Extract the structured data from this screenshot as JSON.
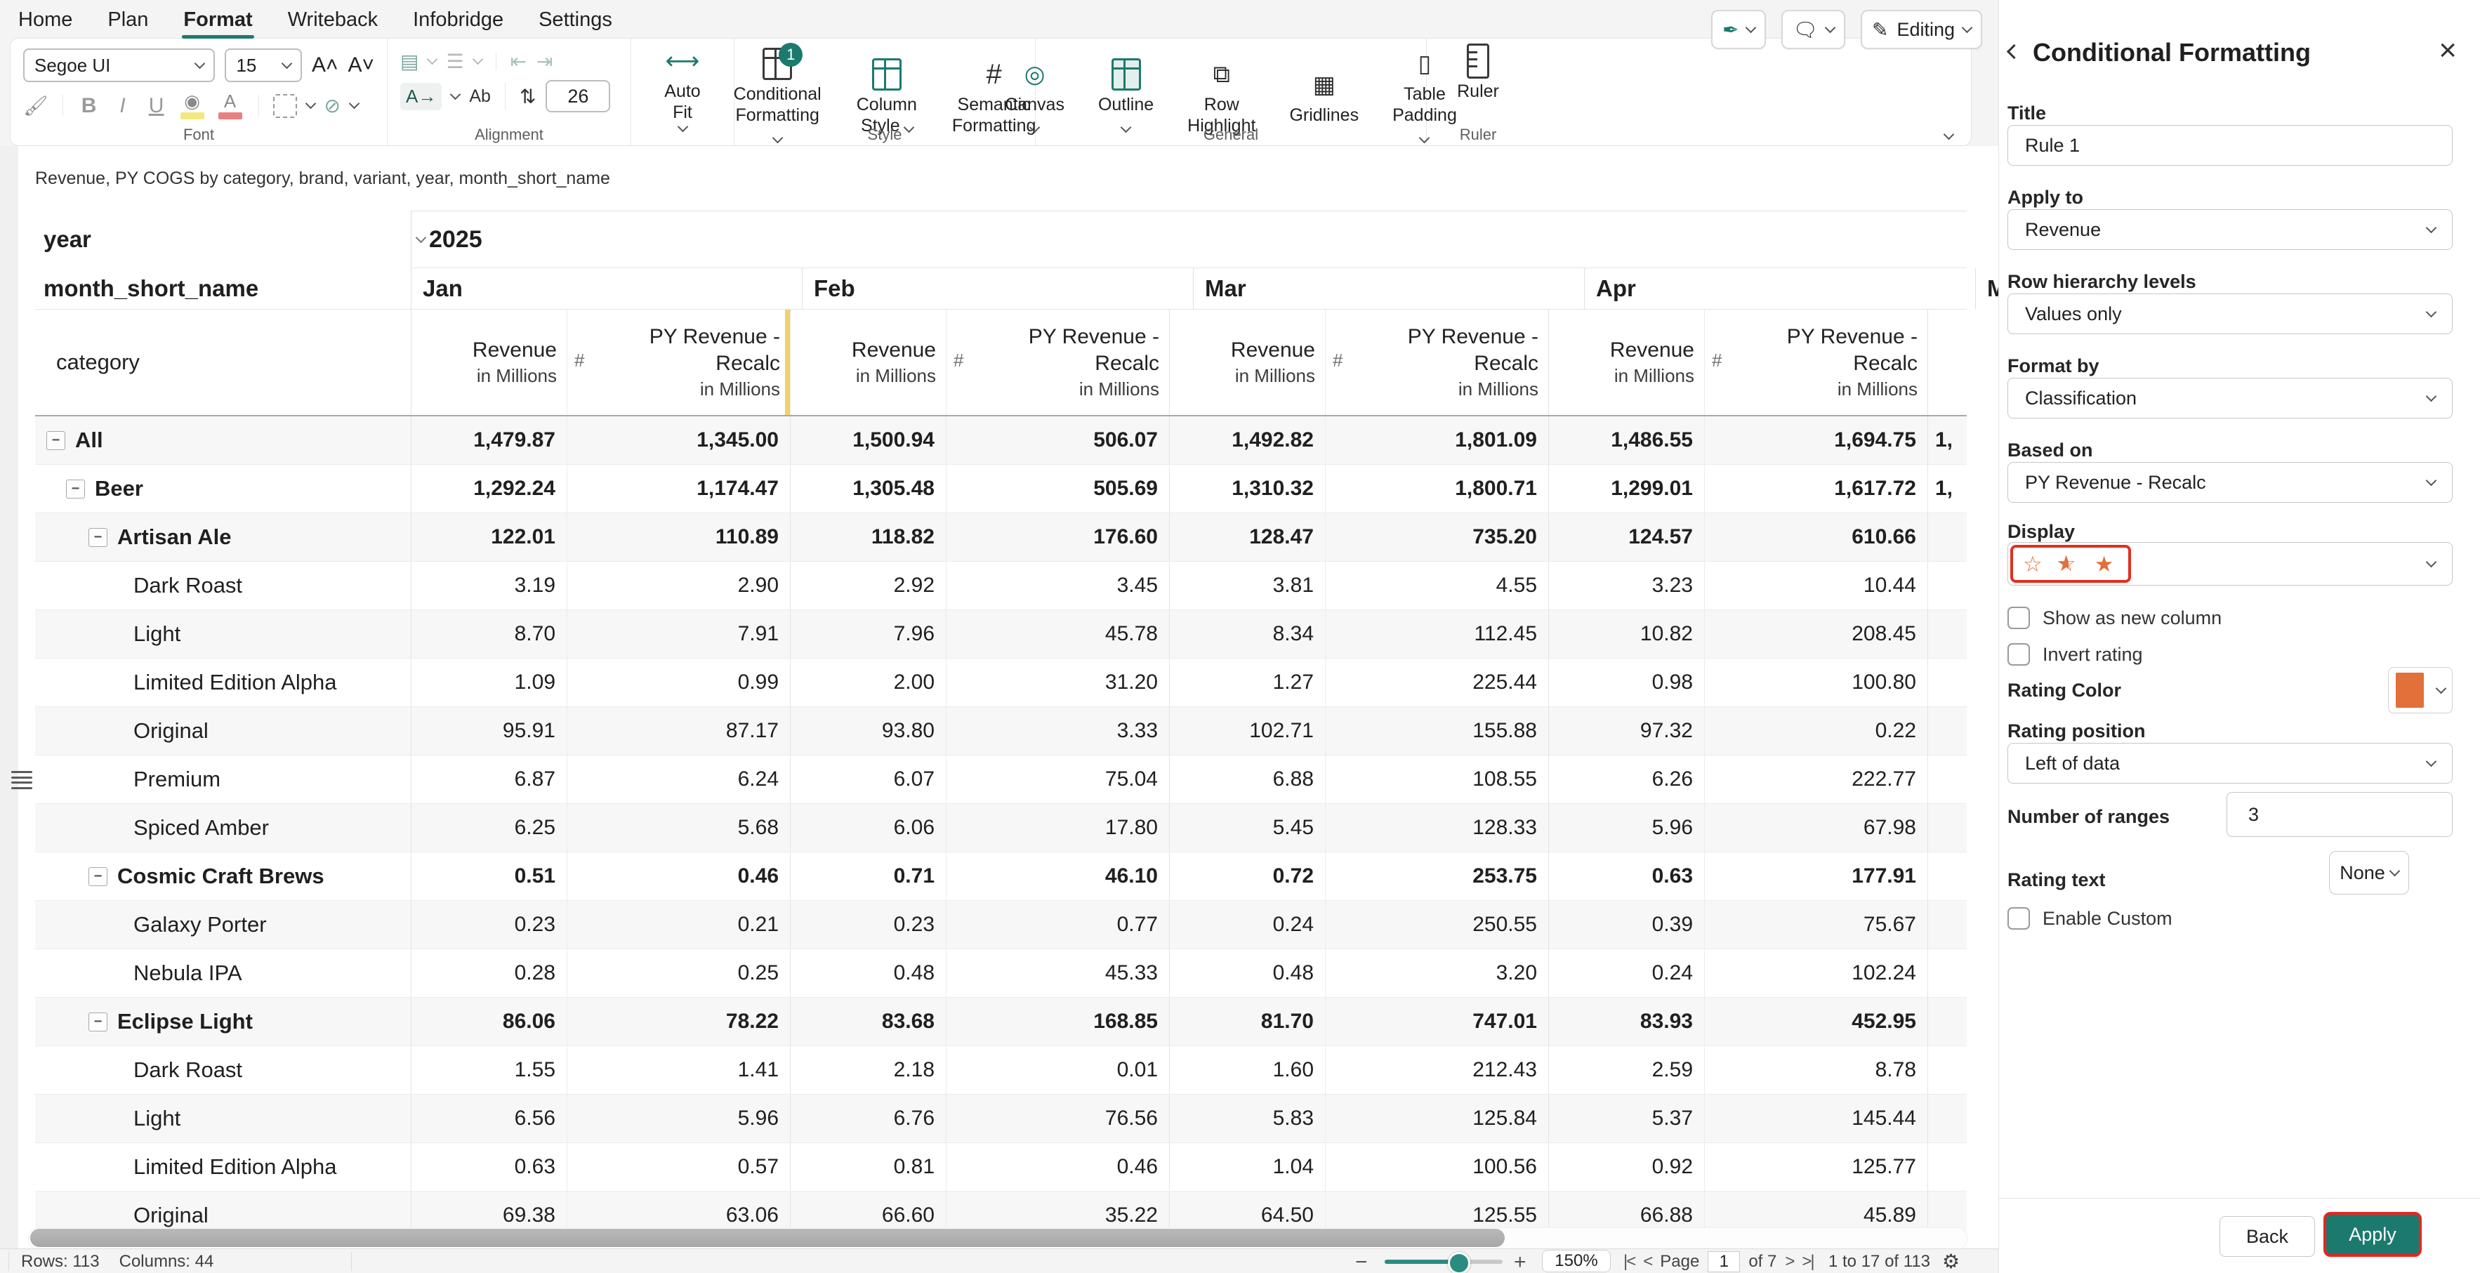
{
  "menubar": {
    "items": [
      "Home",
      "Plan",
      "Format",
      "Writeback",
      "Infobridge",
      "Settings"
    ],
    "active": "Format"
  },
  "quickbar": {
    "editing_label": "Editing"
  },
  "ribbon": {
    "font": {
      "group_label": "Font",
      "font_name": "Segoe UI",
      "font_size": "15",
      "bold": "B",
      "italic": "I",
      "underline": "U"
    },
    "alignment": {
      "group_label": "Alignment",
      "wrap_label": "Ab",
      "row_height": "26",
      "direction_label": "A→"
    },
    "autofit": {
      "label": "Auto Fit"
    },
    "style": {
      "group_label": "Style",
      "badge": "1",
      "conditional_formatting_line1": "Conditional",
      "conditional_formatting_line2": "Formatting",
      "column_style_line1": "Column",
      "column_style_line2": "Style",
      "semantic_line1": "Semantic",
      "semantic_line2": "Formatting",
      "hash_icon": "#"
    },
    "general": {
      "group_label": "General",
      "canvas": "Canvas",
      "outline": "Outline",
      "row_highlight_line1": "Row",
      "row_highlight_line2": "Highlight",
      "gridlines": "Gridlines",
      "table_padding_line1": "Table",
      "table_padding_line2": "Padding"
    },
    "ruler": {
      "group_label": "Ruler",
      "label": "Ruler"
    }
  },
  "table": {
    "title": "Revenue, PY COGS by category, brand, variant, year, month_short_name",
    "year_label": "year",
    "year_value": "2025",
    "month_field_label": "month_short_name",
    "category_label": "category",
    "months": [
      "Jan",
      "Feb",
      "Mar",
      "Apr"
    ],
    "partial_month": "M",
    "col_revenue": "Revenue",
    "col_py_line1": "PY Revenue -",
    "col_py_line2": "Recalc",
    "col_unit": "in Millions",
    "hash": "#",
    "rows": [
      {
        "label": "All",
        "level": 0,
        "bold": true,
        "exp": true,
        "partial": "1,",
        "values": [
          "1,479.87",
          "1,345.00",
          "1,500.94",
          "506.07",
          "1,492.82",
          "1,801.09",
          "1,486.55",
          "1,694.75"
        ]
      },
      {
        "label": "Beer",
        "level": 1,
        "bold": true,
        "exp": true,
        "partial": "1,",
        "values": [
          "1,292.24",
          "1,174.47",
          "1,305.48",
          "505.69",
          "1,310.32",
          "1,800.71",
          "1,299.01",
          "1,617.72"
        ]
      },
      {
        "label": "Artisan Ale",
        "level": 2,
        "bold": true,
        "exp": true,
        "partial": "",
        "values": [
          "122.01",
          "110.89",
          "118.82",
          "176.60",
          "128.47",
          "735.20",
          "124.57",
          "610.66"
        ]
      },
      {
        "label": "Dark Roast",
        "level": 3,
        "bold": false,
        "exp": false,
        "partial": "",
        "values": [
          "3.19",
          "2.90",
          "2.92",
          "3.45",
          "3.81",
          "4.55",
          "3.23",
          "10.44"
        ]
      },
      {
        "label": "Light",
        "level": 3,
        "bold": false,
        "exp": false,
        "partial": "",
        "values": [
          "8.70",
          "7.91",
          "7.96",
          "45.78",
          "8.34",
          "112.45",
          "10.82",
          "208.45"
        ]
      },
      {
        "label": "Limited Edition Alpha",
        "level": 3,
        "bold": false,
        "exp": false,
        "partial": "",
        "values": [
          "1.09",
          "0.99",
          "2.00",
          "31.20",
          "1.27",
          "225.44",
          "0.98",
          "100.80"
        ]
      },
      {
        "label": "Original",
        "level": 3,
        "bold": false,
        "exp": false,
        "partial": "",
        "values": [
          "95.91",
          "87.17",
          "93.80",
          "3.33",
          "102.71",
          "155.88",
          "97.32",
          "0.22"
        ]
      },
      {
        "label": "Premium",
        "level": 3,
        "bold": false,
        "exp": false,
        "partial": "",
        "values": [
          "6.87",
          "6.24",
          "6.07",
          "75.04",
          "6.88",
          "108.55",
          "6.26",
          "222.77"
        ]
      },
      {
        "label": "Spiced Amber",
        "level": 3,
        "bold": false,
        "exp": false,
        "partial": "",
        "values": [
          "6.25",
          "5.68",
          "6.06",
          "17.80",
          "5.45",
          "128.33",
          "5.96",
          "67.98"
        ]
      },
      {
        "label": "Cosmic Craft Brews",
        "level": 2,
        "bold": true,
        "exp": true,
        "partial": "",
        "values": [
          "0.51",
          "0.46",
          "0.71",
          "46.10",
          "0.72",
          "253.75",
          "0.63",
          "177.91"
        ]
      },
      {
        "label": "Galaxy Porter",
        "level": 3,
        "bold": false,
        "exp": false,
        "partial": "",
        "values": [
          "0.23",
          "0.21",
          "0.23",
          "0.77",
          "0.24",
          "250.55",
          "0.39",
          "75.67"
        ]
      },
      {
        "label": "Nebula IPA",
        "level": 3,
        "bold": false,
        "exp": false,
        "partial": "",
        "values": [
          "0.28",
          "0.25",
          "0.48",
          "45.33",
          "0.48",
          "3.20",
          "0.24",
          "102.24"
        ]
      },
      {
        "label": "Eclipse Light",
        "level": 2,
        "bold": true,
        "exp": true,
        "partial": "",
        "values": [
          "86.06",
          "78.22",
          "83.68",
          "168.85",
          "81.70",
          "747.01",
          "83.93",
          "452.95"
        ]
      },
      {
        "label": "Dark Roast",
        "level": 3,
        "bold": false,
        "exp": false,
        "partial": "",
        "values": [
          "1.55",
          "1.41",
          "2.18",
          "0.01",
          "1.60",
          "212.43",
          "2.59",
          "8.78"
        ]
      },
      {
        "label": "Light",
        "level": 3,
        "bold": false,
        "exp": false,
        "partial": "",
        "values": [
          "6.56",
          "5.96",
          "6.76",
          "76.56",
          "5.83",
          "125.84",
          "5.37",
          "145.44"
        ]
      },
      {
        "label": "Limited Edition Alpha",
        "level": 3,
        "bold": false,
        "exp": false,
        "partial": "",
        "values": [
          "0.63",
          "0.57",
          "0.81",
          "0.46",
          "1.04",
          "100.56",
          "0.92",
          "125.77"
        ]
      },
      {
        "label": "Original",
        "level": 3,
        "bold": false,
        "exp": false,
        "partial": "",
        "values": [
          "69.38",
          "63.06",
          "66.60",
          "35.22",
          "64.50",
          "125.55",
          "66.88",
          "45.89"
        ]
      }
    ]
  },
  "statusbar": {
    "rows": "Rows: 113",
    "columns": "Columns: 44",
    "zoom_value": "150%",
    "page_label": "Page",
    "page_value": "1",
    "page_of": "of 7",
    "range": "1 to 17 of 113",
    "first_icon": "|<",
    "prev_icon": "<",
    "next_icon": ">",
    "last_icon": ">|"
  },
  "panel": {
    "title": "Conditional Formatting",
    "close_icon": "×",
    "title_label": "Title",
    "title_value": "Rule 1",
    "apply_to_label": "Apply to",
    "apply_to_value": "Revenue",
    "row_hierarchy_label": "Row hierarchy levels",
    "row_hierarchy_value": "Values only",
    "format_by_label": "Format by",
    "format_by_value": "Classification",
    "based_on_label": "Based on",
    "based_on_value": "PY Revenue - Recalc",
    "display_label": "Display",
    "show_as_new_column": "Show as new column",
    "invert_rating": "Invert rating",
    "rating_color_label": "Rating Color",
    "rating_position_label": "Rating position",
    "rating_position_value": "Left of data",
    "number_of_ranges_label": "Number of ranges",
    "number_of_ranges_value": "3",
    "rating_text_label": "Rating text",
    "rating_text_value": "None",
    "enable_custom": "Enable Custom",
    "back_button": "Back",
    "apply_button": "Apply",
    "colors": {
      "rating_orange": "#E2703A",
      "highlight_red": "#E0301E",
      "accent_teal": "#1B7A6D"
    }
  }
}
